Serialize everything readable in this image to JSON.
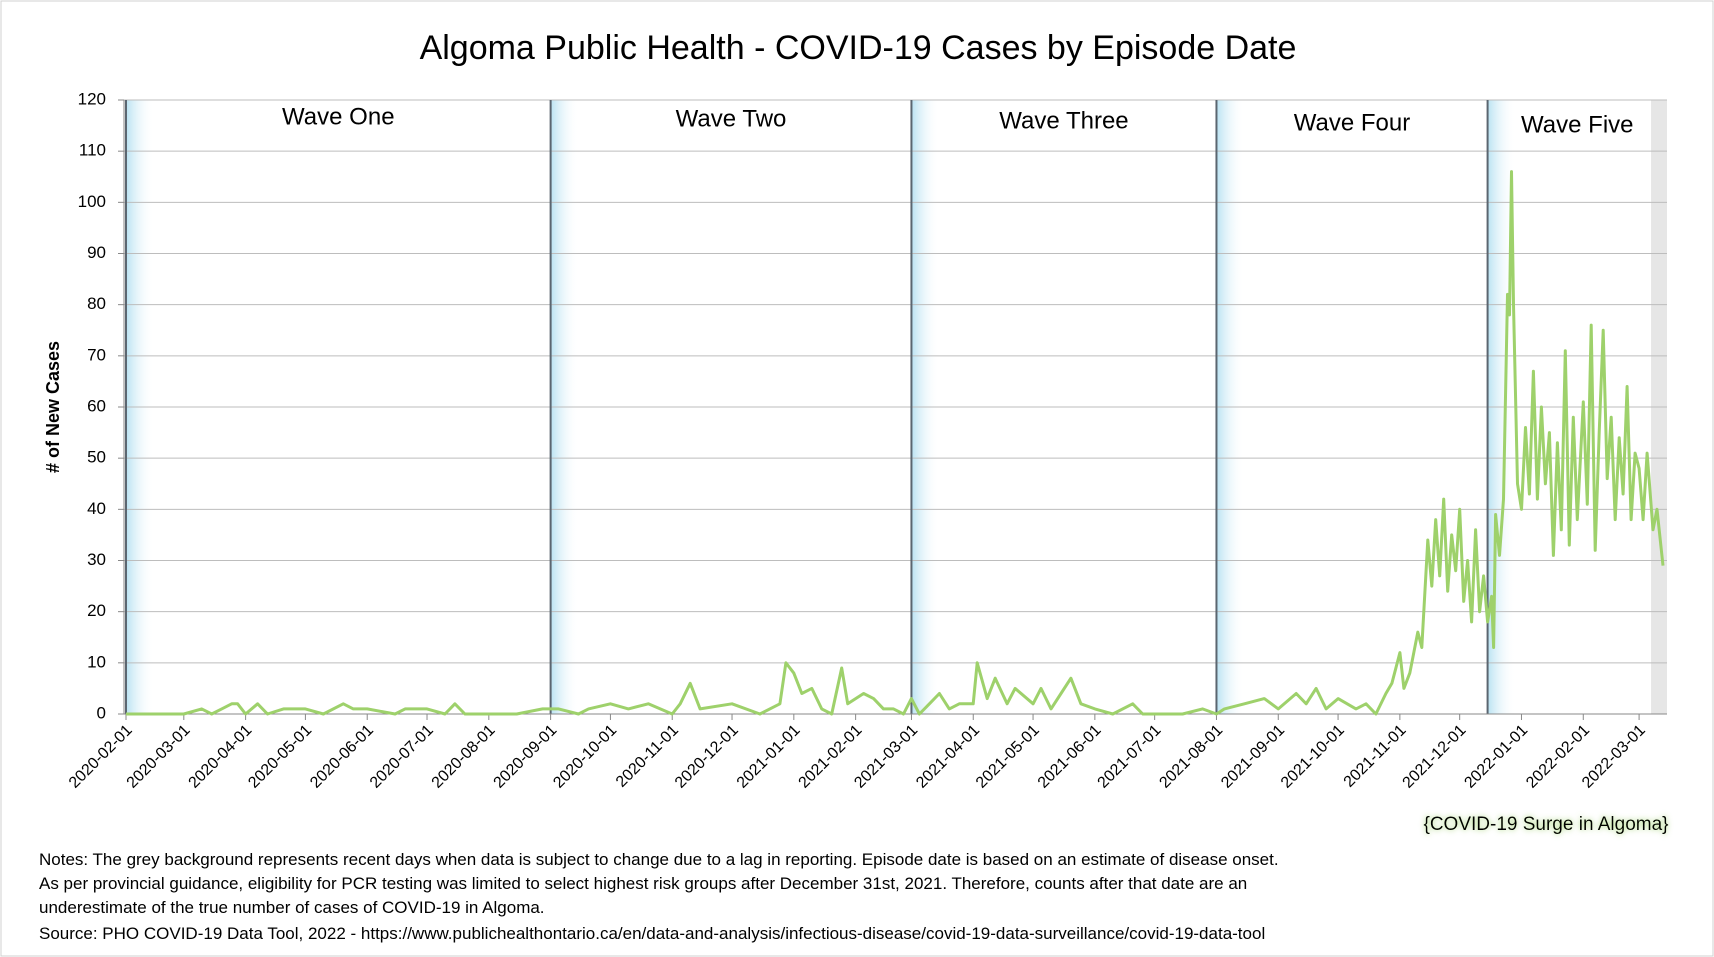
{
  "chart_data": {
    "type": "line",
    "title": "Algoma Public Health - COVID-19 Cases by Episode Date",
    "y_label": "# of New Cases",
    "annotation": "{COVID-19 Surge in Algoma}",
    "notes": [
      "Notes: The grey background represents recent days when data is subject to change due to a lag in reporting. Episode date is based on an estimate of disease onset.",
      "As per provincial guidance, eligibility for PCR testing was limited to select highest risk groups after December 31st, 2021. Therefore, counts after that date are an",
      "underestimate of the true number of cases of COVID-19 in Algoma.",
      "Source: PHO COVID-19 Data Tool, 2022 - https://www.publichealthontario.ca/en/data-and-analysis/infectious-disease/covid-19-data-surveillance/covid-19-data-tool"
    ],
    "waves": [
      {
        "label": "Wave One",
        "start": "2020-02-01"
      },
      {
        "label": "Wave Two",
        "start": "2020-09-01"
      },
      {
        "label": "Wave Three",
        "start": "2021-03-01"
      },
      {
        "label": "Wave Four",
        "start": "2021-08-01"
      },
      {
        "label": "Wave Five",
        "start": "2021-12-15"
      }
    ],
    "recent_data_start": "2022-03-07",
    "grid": true,
    "xlim": [
      "2020-01-31",
      "2022-03-15"
    ],
    "xticks": [
      "2020-02-01",
      "2020-03-01",
      "2020-04-01",
      "2020-05-01",
      "2020-06-01",
      "2020-07-01",
      "2020-08-01",
      "2020-09-01",
      "2020-10-01",
      "2020-11-01",
      "2020-12-01",
      "2021-01-01",
      "2021-02-01",
      "2021-03-01",
      "2021-04-01",
      "2021-05-01",
      "2021-06-01",
      "2021-07-01",
      "2021-08-01",
      "2021-09-01",
      "2021-10-01",
      "2021-11-01",
      "2021-12-01",
      "2022-01-01",
      "2022-02-01",
      "2022-03-01"
    ],
    "ylim": [
      0,
      120
    ],
    "yticks": [
      0,
      10,
      20,
      30,
      40,
      50,
      60,
      70,
      80,
      90,
      100,
      110,
      120
    ],
    "color": "#9ed16b",
    "x": [
      "2020-02-01",
      "2020-02-15",
      "2020-03-01",
      "2020-03-10",
      "2020-03-15",
      "2020-03-20",
      "2020-03-25",
      "2020-03-28",
      "2020-04-01",
      "2020-04-07",
      "2020-04-12",
      "2020-04-20",
      "2020-05-01",
      "2020-05-10",
      "2020-05-20",
      "2020-05-25",
      "2020-06-01",
      "2020-06-15",
      "2020-06-20",
      "2020-07-01",
      "2020-07-10",
      "2020-07-15",
      "2020-07-20",
      "2020-08-15",
      "2020-08-28",
      "2020-09-05",
      "2020-09-15",
      "2020-09-20",
      "2020-10-01",
      "2020-10-10",
      "2020-10-20",
      "2020-11-01",
      "2020-11-05",
      "2020-11-10",
      "2020-11-15",
      "2020-12-01",
      "2020-12-15",
      "2020-12-25",
      "2020-12-28",
      "2021-01-01",
      "2021-01-05",
      "2021-01-10",
      "2021-01-15",
      "2021-01-20",
      "2021-01-25",
      "2021-01-28",
      "2021-02-05",
      "2021-02-10",
      "2021-02-15",
      "2021-02-20",
      "2021-02-25",
      "2021-03-01",
      "2021-03-05",
      "2021-03-10",
      "2021-03-15",
      "2021-03-20",
      "2021-03-25",
      "2021-04-01",
      "2021-04-03",
      "2021-04-08",
      "2021-04-12",
      "2021-04-18",
      "2021-04-22",
      "2021-05-01",
      "2021-05-05",
      "2021-05-10",
      "2021-05-15",
      "2021-05-20",
      "2021-05-25",
      "2021-06-01",
      "2021-06-10",
      "2021-06-20",
      "2021-06-25",
      "2021-07-15",
      "2021-07-25",
      "2021-08-01",
      "2021-08-05",
      "2021-08-15",
      "2021-08-25",
      "2021-09-01",
      "2021-09-10",
      "2021-09-15",
      "2021-09-20",
      "2021-09-25",
      "2021-10-01",
      "2021-10-10",
      "2021-10-15",
      "2021-10-20",
      "2021-10-25",
      "2021-10-28",
      "2021-11-01",
      "2021-11-03",
      "2021-11-06",
      "2021-11-10",
      "2021-11-12",
      "2021-11-15",
      "2021-11-17",
      "2021-11-19",
      "2021-11-21",
      "2021-11-23",
      "2021-11-25",
      "2021-11-27",
      "2021-11-29",
      "2021-12-01",
      "2021-12-03",
      "2021-12-05",
      "2021-12-07",
      "2021-12-09",
      "2021-12-11",
      "2021-12-13",
      "2021-12-15",
      "2021-12-17",
      "2021-12-18",
      "2021-12-19",
      "2021-12-21",
      "2021-12-23",
      "2021-12-25",
      "2021-12-26",
      "2021-12-27",
      "2021-12-28",
      "2021-12-30",
      "2022-01-01",
      "2022-01-03",
      "2022-01-05",
      "2022-01-07",
      "2022-01-09",
      "2022-01-11",
      "2022-01-13",
      "2022-01-15",
      "2022-01-17",
      "2022-01-19",
      "2022-01-21",
      "2022-01-23",
      "2022-01-25",
      "2022-01-27",
      "2022-01-29",
      "2022-02-01",
      "2022-02-03",
      "2022-02-05",
      "2022-02-07",
      "2022-02-09",
      "2022-02-11",
      "2022-02-13",
      "2022-02-15",
      "2022-02-17",
      "2022-02-19",
      "2022-02-21",
      "2022-02-23",
      "2022-02-25",
      "2022-02-27",
      "2022-03-01",
      "2022-03-03",
      "2022-03-05",
      "2022-03-08",
      "2022-03-10",
      "2022-03-13"
    ],
    "values": [
      0,
      0,
      0,
      1,
      0,
      1,
      2,
      2,
      0,
      2,
      0,
      1,
      1,
      0,
      2,
      1,
      1,
      0,
      1,
      1,
      0,
      2,
      0,
      0,
      1,
      1,
      0,
      1,
      2,
      1,
      2,
      0,
      2,
      6,
      1,
      2,
      0,
      2,
      10,
      8,
      4,
      5,
      1,
      0,
      9,
      2,
      4,
      3,
      1,
      1,
      0,
      3,
      0,
      2,
      4,
      1,
      2,
      2,
      10,
      3,
      7,
      2,
      5,
      2,
      5,
      1,
      4,
      7,
      2,
      1,
      0,
      2,
      0,
      0,
      1,
      0,
      1,
      2,
      3,
      1,
      4,
      2,
      5,
      1,
      3,
      1,
      2,
      0,
      4,
      6,
      12,
      5,
      8,
      16,
      13,
      34,
      25,
      38,
      27,
      42,
      24,
      35,
      28,
      40,
      22,
      30,
      18,
      36,
      20,
      27,
      18,
      23,
      13,
      39,
      31,
      42,
      82,
      78,
      106,
      80,
      45,
      40,
      56,
      43,
      67,
      42,
      60,
      45,
      55,
      31,
      53,
      36,
      71,
      33,
      58,
      38,
      61,
      41,
      76,
      32,
      55,
      75,
      46,
      58,
      38,
      54,
      43,
      64,
      38,
      51,
      48,
      38,
      51,
      36,
      40,
      29
    ]
  }
}
